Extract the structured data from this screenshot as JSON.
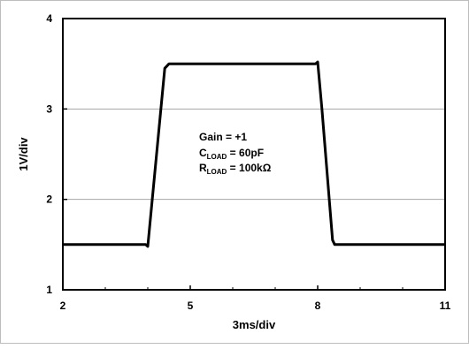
{
  "chart_data": {
    "type": "line",
    "title": "",
    "xlabel": "3ms/div",
    "ylabel": "1V/div",
    "xlim": [
      2,
      11
    ],
    "ylim": [
      1,
      4
    ],
    "x_ticks": [
      2,
      5,
      8,
      11
    ],
    "y_ticks": [
      1,
      2,
      3,
      4
    ],
    "x_tick_labels": [
      "2",
      "5",
      "8",
      "11"
    ],
    "y_tick_labels": [
      "1",
      "2",
      "3",
      "4"
    ],
    "minor_x_ticks": [
      3,
      4,
      6,
      7,
      9,
      10
    ],
    "grid": true,
    "series": [
      {
        "color": "#000000",
        "x": [
          2.0,
          3.95,
          4.0,
          4.4,
          4.5,
          7.95,
          8.0,
          8.1,
          8.35,
          8.4,
          11.0
        ],
        "y": [
          1.5,
          1.5,
          1.48,
          3.45,
          3.5,
          3.5,
          3.52,
          3.0,
          1.55,
          1.5,
          1.5
        ]
      }
    ],
    "annotation": {
      "line1": "Gain = +1",
      "line2_main": "C",
      "line2_sub": "LOAD",
      "line2_rest": " = 60pF",
      "line3_main": "R",
      "line3_sub": "LOAD",
      "line3_rest": " = 100kΩ"
    }
  }
}
